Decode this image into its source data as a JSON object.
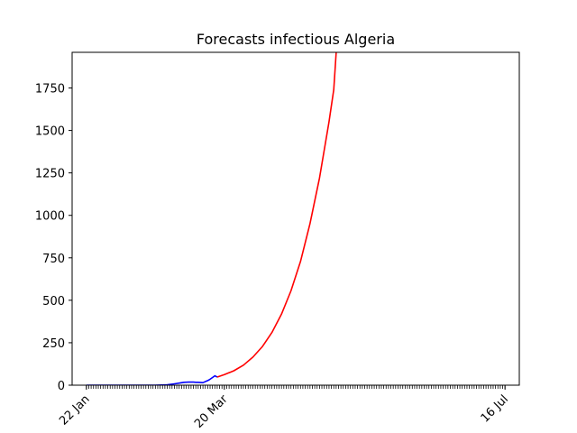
{
  "chart_data": {
    "type": "line",
    "title": "Forecasts infectious Algeria",
    "xlabel": "",
    "ylabel": "",
    "x_start": "22 Jan",
    "x_end": "16 Jul",
    "xlim": [
      "2020-01-16",
      "2020-07-22"
    ],
    "ylim": [
      0,
      1960
    ],
    "yticks": [
      0,
      250,
      500,
      750,
      1000,
      1250,
      1500,
      1750
    ],
    "xticks": [
      {
        "date": "2020-01-22",
        "label": "22 Jan"
      },
      {
        "date": "2020-03-20",
        "label": "20 Mar"
      },
      {
        "date": "2020-07-16",
        "label": "16 Jul"
      }
    ],
    "grid": false,
    "series": [
      {
        "color": "#0000ff",
        "x": [
          "2020-01-22",
          "2020-02-20",
          "2020-02-25",
          "2020-02-28",
          "2020-03-01",
          "2020-03-03",
          "2020-03-05",
          "2020-03-07",
          "2020-03-08",
          "2020-03-09",
          "2020-03-11",
          "2020-03-13",
          "2020-03-14",
          "2020-03-15",
          "2020-03-16",
          "2020-03-17"
        ],
        "y": [
          0,
          0,
          2,
          8,
          12,
          17,
          18,
          18,
          17,
          17,
          15,
          27,
          35,
          45,
          55,
          48
        ]
      },
      {
        "color": "#ff0000",
        "x": [
          "2020-03-17",
          "2020-03-20",
          "2020-03-24",
          "2020-03-28",
          "2020-04-01",
          "2020-04-05",
          "2020-04-09",
          "2020-04-13",
          "2020-04-17",
          "2020-04-21",
          "2020-04-25",
          "2020-04-29",
          "2020-05-03",
          "2020-05-05",
          "2020-05-06"
        ],
        "y": [
          48,
          62,
          85,
          118,
          165,
          228,
          310,
          418,
          555,
          728,
          950,
          1220,
          1550,
          1740,
          1960
        ]
      }
    ]
  }
}
